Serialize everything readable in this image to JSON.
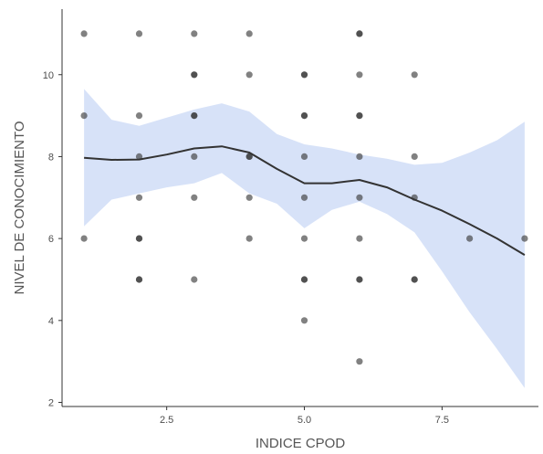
{
  "chart_data": {
    "type": "scatter",
    "title": "",
    "xlabel": "INDICE CPOD",
    "ylabel": "NIVEL DE CONOCIMIENTO",
    "xlim": [
      0.6,
      9.25
    ],
    "ylim": [
      1.9,
      11.6
    ],
    "x_ticks": [
      2.5,
      5.0,
      7.5
    ],
    "x_tick_labels": [
      "2.5",
      "5.0",
      "7.5"
    ],
    "y_ticks": [
      2,
      4,
      6,
      8,
      10
    ],
    "y_tick_labels": [
      "2",
      "4",
      "6",
      "8",
      "10"
    ],
    "grid": false,
    "legend": "none",
    "points_color": "#333333",
    "ribbon_color": "#c9d8f5",
    "line_color": "#333333",
    "points": [
      {
        "x": 1,
        "y": 11
      },
      {
        "x": 1,
        "y": 9
      },
      {
        "x": 1,
        "y": 6
      },
      {
        "x": 2,
        "y": 11
      },
      {
        "x": 2,
        "y": 9
      },
      {
        "x": 2,
        "y": 8
      },
      {
        "x": 2,
        "y": 7
      },
      {
        "x": 2,
        "y": 6
      },
      {
        "x": 2,
        "y": 6
      },
      {
        "x": 2,
        "y": 5
      },
      {
        "x": 2,
        "y": 5
      },
      {
        "x": 3,
        "y": 11
      },
      {
        "x": 3,
        "y": 10
      },
      {
        "x": 3,
        "y": 10
      },
      {
        "x": 3,
        "y": 9
      },
      {
        "x": 3,
        "y": 9
      },
      {
        "x": 3,
        "y": 8
      },
      {
        "x": 3,
        "y": 7
      },
      {
        "x": 3,
        "y": 5
      },
      {
        "x": 4,
        "y": 11
      },
      {
        "x": 4,
        "y": 10
      },
      {
        "x": 4,
        "y": 8
      },
      {
        "x": 4,
        "y": 8
      },
      {
        "x": 4,
        "y": 7
      },
      {
        "x": 4,
        "y": 6
      },
      {
        "x": 5,
        "y": 10
      },
      {
        "x": 5,
        "y": 10
      },
      {
        "x": 5,
        "y": 9
      },
      {
        "x": 5,
        "y": 9
      },
      {
        "x": 5,
        "y": 8
      },
      {
        "x": 5,
        "y": 7
      },
      {
        "x": 5,
        "y": 6
      },
      {
        "x": 5,
        "y": 5
      },
      {
        "x": 5,
        "y": 5
      },
      {
        "x": 5,
        "y": 4
      },
      {
        "x": 6,
        "y": 11
      },
      {
        "x": 6,
        "y": 11
      },
      {
        "x": 6,
        "y": 10
      },
      {
        "x": 6,
        "y": 9
      },
      {
        "x": 6,
        "y": 9
      },
      {
        "x": 6,
        "y": 8
      },
      {
        "x": 6,
        "y": 7
      },
      {
        "x": 6,
        "y": 6
      },
      {
        "x": 6,
        "y": 5
      },
      {
        "x": 6,
        "y": 5
      },
      {
        "x": 6,
        "y": 3
      },
      {
        "x": 7,
        "y": 10
      },
      {
        "x": 7,
        "y": 8
      },
      {
        "x": 7,
        "y": 7
      },
      {
        "x": 7,
        "y": 5
      },
      {
        "x": 7,
        "y": 5
      },
      {
        "x": 8,
        "y": 6
      },
      {
        "x": 9,
        "y": 6
      }
    ],
    "smooth_fit": {
      "method": "loess",
      "x": [
        1.0,
        1.5,
        2.0,
        2.5,
        3.0,
        3.5,
        4.0,
        4.5,
        5.0,
        5.5,
        6.0,
        6.5,
        7.0,
        7.5,
        8.0,
        8.5,
        9.0
      ],
      "y": [
        7.97,
        7.92,
        7.93,
        8.05,
        8.2,
        8.25,
        8.1,
        7.7,
        7.35,
        7.35,
        7.43,
        7.25,
        6.95,
        6.68,
        6.35,
        6.0,
        5.6
      ],
      "lower": [
        6.3,
        6.95,
        7.1,
        7.25,
        7.35,
        7.6,
        7.1,
        6.85,
        6.25,
        6.7,
        6.9,
        6.6,
        6.15,
        5.2,
        4.2,
        3.3,
        2.35
      ],
      "upper": [
        9.65,
        8.9,
        8.75,
        8.95,
        9.15,
        9.3,
        9.1,
        8.55,
        8.3,
        8.2,
        8.05,
        7.95,
        7.8,
        7.85,
        8.1,
        8.4,
        8.85
      ]
    }
  }
}
